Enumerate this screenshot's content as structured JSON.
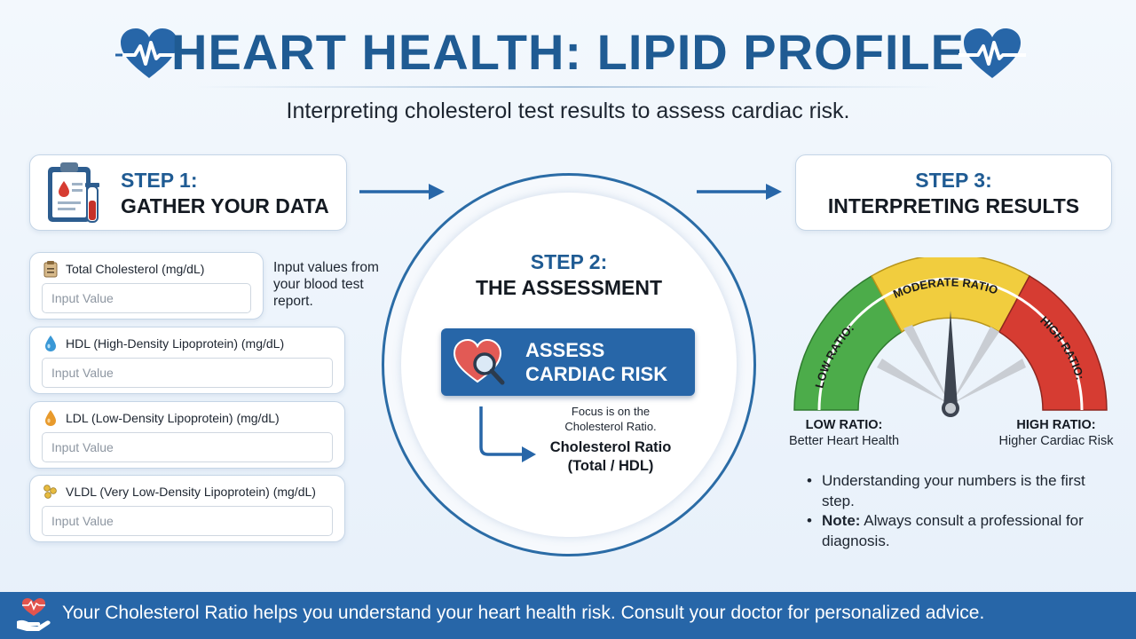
{
  "header": {
    "title": "HEART HEALTH: LIPID PROFILE",
    "subtitle": "Interpreting cholesterol test results to assess cardiac risk.",
    "logo_icon": "heart-pulse-icon",
    "accent_color": "#1f5b93"
  },
  "step1": {
    "title": "STEP 1:",
    "subtitle": "GATHER YOUR DATA",
    "icon": "clipboard-blood-test-icon",
    "hint": "Input values from your blood test report.",
    "fields": [
      {
        "label": "Total Cholesterol (mg/dL)",
        "placeholder": "Input Value",
        "value": "",
        "icon": "clipboard-icon"
      },
      {
        "label": "HDL (High-Density Lipoprotein) (mg/dL)",
        "placeholder": "Input Value",
        "value": "",
        "icon": "blue-droplet-icon"
      },
      {
        "label": "LDL (Low-Density Lipoprotein) (mg/dL)",
        "placeholder": "Input Value",
        "value": "",
        "icon": "orange-droplet-icon"
      },
      {
        "label": "VLDL (Very Low-Density Lipoprotein) (mg/dL)",
        "placeholder": "Input Value",
        "value": "",
        "icon": "lipid-particles-icon"
      }
    ]
  },
  "step2": {
    "title": "STEP 2:",
    "subtitle": "THE ASSESSMENT",
    "button_label": "ASSESS CARDIAC RISK",
    "button_icon": "heart-magnifier-icon",
    "focus_note": "Focus is on the Cholesterol Ratio.",
    "ratio_formula": "Cholesterol Ratio (Total / HDL)"
  },
  "step3": {
    "title": "STEP 3:",
    "subtitle": "INTERPRETING RESULTS",
    "gauge": {
      "low_zone": "LOW RATIO:",
      "moderate_zone": "MODERATE RATIO",
      "high_zone": "HIGH RATIO:",
      "low_zone_color": "#4cac4a",
      "moderate_zone_color": "#f1cd3e",
      "high_zone_color": "#d63c32"
    },
    "low_title": "LOW RATIO:",
    "low_sub": "Better Heart Health",
    "high_title": "HIGH RATIO:",
    "high_sub": "Higher Cardiac Risk",
    "notes": [
      {
        "bold": "",
        "text": "Understanding your numbers is the first step."
      },
      {
        "bold": "Note:",
        "text": " Always consult a professional for diagnosis."
      }
    ]
  },
  "footer": {
    "text": "Your Cholesterol Ratio helps you understand your heart health risk. Consult your doctor for personalized advice.",
    "icon": "heart-in-hand-icon",
    "background": "#2766a8"
  }
}
